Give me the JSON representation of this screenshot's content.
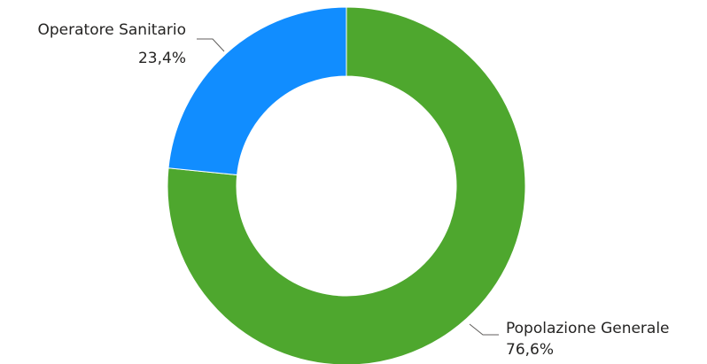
{
  "chart_data": {
    "type": "pie",
    "variant": "donut",
    "title": "",
    "slices": [
      {
        "label": "Popolazione Generale",
        "value": 76.6,
        "display_value": "76,6%",
        "color": "#4ea72e"
      },
      {
        "label": "Operatore Sanitario",
        "value": 23.4,
        "display_value": "23,4%",
        "color": "#118dff"
      }
    ],
    "legend": "none",
    "data_labels": "outside"
  }
}
